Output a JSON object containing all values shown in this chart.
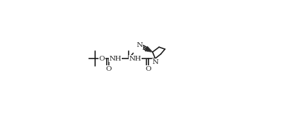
{
  "bg_color": "#ffffff",
  "line_color": "#1a1a1a",
  "lw": 1.2,
  "fs": 7.5,
  "figsize": [
    4.18,
    1.72
  ],
  "dpi": 100,
  "xlim": [
    0.0,
    1.0
  ],
  "ylim": [
    0.0,
    1.0
  ]
}
